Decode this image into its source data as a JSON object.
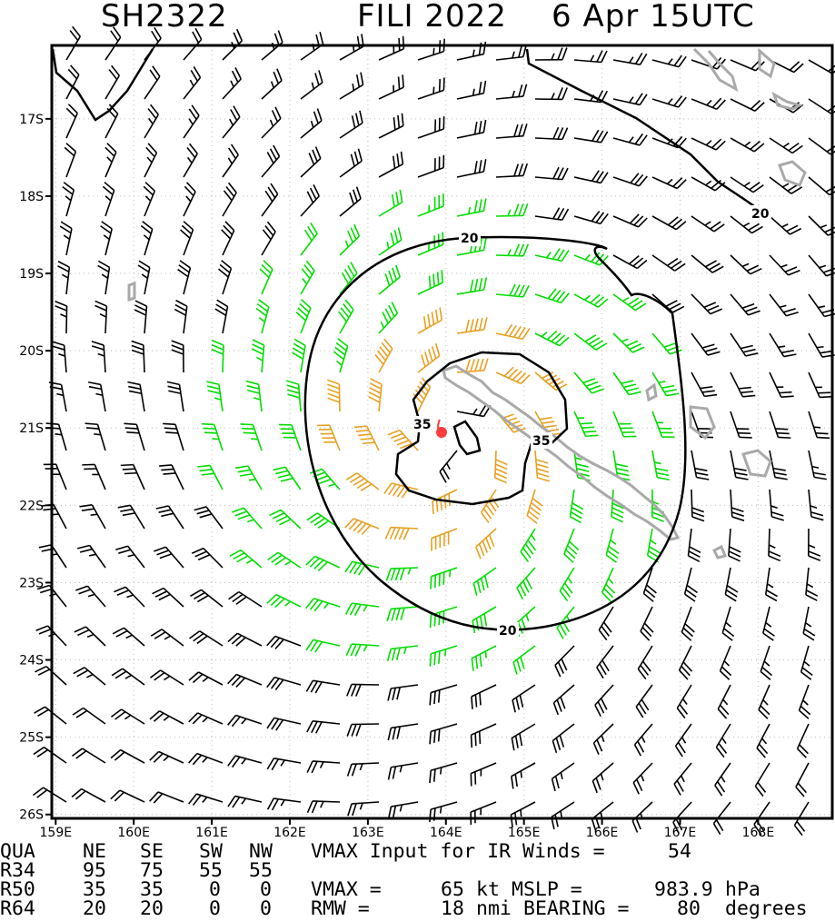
{
  "header": {
    "storm_id": "SH2322",
    "storm_name_year": "FILI 2022",
    "time": "6 Apr 15UTC"
  },
  "chart_data": {
    "type": "wind_barb_map",
    "x_axis": {
      "range_deg_east": [
        158.95,
        168.95
      ],
      "ticks": [
        159,
        160,
        161,
        162,
        163,
        164,
        165,
        166,
        167,
        168
      ],
      "tick_labels": [
        "159E",
        "160E",
        "161E",
        "162E",
        "163E",
        "164E",
        "165E",
        "166E",
        "167E",
        "168E"
      ]
    },
    "y_axis": {
      "range_deg_south": [
        16.05,
        26.05
      ],
      "ticks": [
        17,
        18,
        19,
        20,
        21,
        22,
        23,
        24,
        25,
        26
      ],
      "tick_labels": [
        "17S",
        "18S",
        "19S",
        "20S",
        "21S",
        "22S",
        "23S",
        "24S",
        "25S",
        "26S"
      ]
    },
    "grid": "dotted",
    "storm_center": {
      "lon": 164.0,
      "lat": -21.1,
      "color": "#ff3b3b"
    },
    "wind_speed_colors": {
      "below_34kt": "#000000",
      "34_to_49kt": "#00dd00",
      "50_to_63kt": "#e8a020"
    },
    "contours": [
      {
        "level_kt": 20,
        "label": "20"
      },
      {
        "level_kt": 35,
        "label": "35"
      }
    ],
    "coastline_color": "#a9a9a9"
  },
  "table": {
    "rows": [
      [
        "QUA",
        "NE",
        "SE",
        "SW",
        "NW"
      ],
      [
        "R34",
        "95",
        "75",
        "55",
        "55"
      ],
      [
        "R50",
        "35",
        "35",
        "0",
        "0"
      ],
      [
        "R64",
        "20",
        "20",
        "0",
        "0"
      ]
    ]
  },
  "params": {
    "vmax_input_label": "VMAX Input for IR Winds =",
    "vmax_input_value": "54",
    "vmax_label": "VMAX =",
    "vmax_value": "65",
    "vmax_unit": "kt",
    "mslp_label": "MSLP =",
    "mslp_value": "983.9",
    "mslp_unit": "hPa",
    "rmw_label": "RMW =",
    "rmw_value": "18",
    "rmw_unit": "nmi",
    "bearing_label": "BEARING =",
    "bearing_value": "80",
    "bearing_unit": "degrees"
  }
}
